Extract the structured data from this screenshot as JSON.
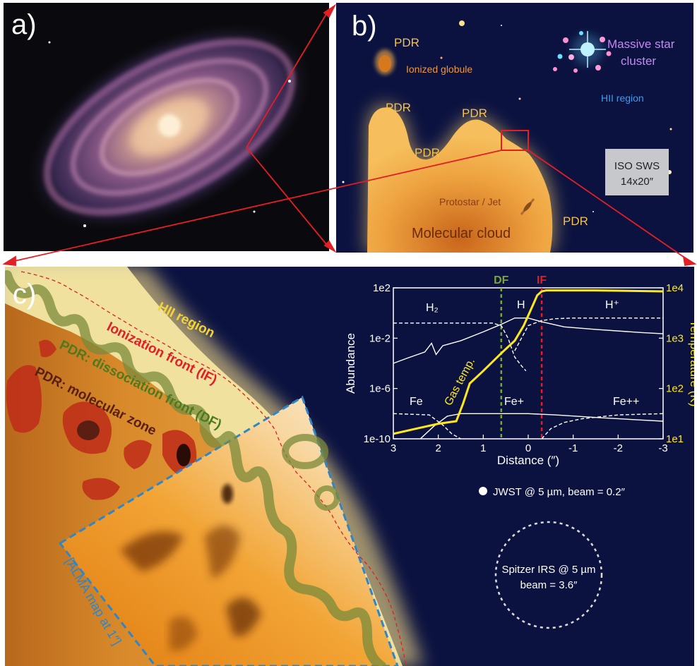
{
  "panel_a": {
    "label": "a)"
  },
  "panel_b": {
    "label": "b)",
    "pdr_labels": [
      "PDR",
      "PDR",
      "PDR",
      "PDR",
      "PDR"
    ],
    "ionized_globule": "Ionized globule",
    "massive_star_cluster_line1": "Massive star",
    "massive_star_cluster_line2": "cluster",
    "hii_region": "HII region",
    "iso_sws_line1": "ISO SWS",
    "iso_sws_line2": "14x20″",
    "protostar_jet": "Protostar / Jet",
    "molecular_cloud": "Molecular cloud"
  },
  "panel_c": {
    "label": "c)",
    "hii_region": "HII region",
    "ionization_front": "Ionization front (IF)",
    "dissociation_front": "PDR: dissociation front (DF)",
    "molecular_zone": "PDR: molecular zone",
    "alma_map": "[ALMA map at 1″]",
    "jwst_beam": "JWST @ 5 µm, beam = 0.2″",
    "spitzer_line1": "Spitzer IRS @ 5 µm",
    "spitzer_line2": "beam = 3.6″"
  },
  "colors": {
    "arrow_red": "#e31e24",
    "background_navy": "#0b1240",
    "pdr_orange": "#f5b041",
    "gas_temp_yellow": "#ffe81a",
    "df_green": "#7aa53a",
    "if_red": "#e31e24",
    "alma_blue": "#2e86c8"
  },
  "chart_data": {
    "type": "line",
    "xlabel": "Distance (″)",
    "ylabel": "Abundance",
    "y2label": "Temperature (K)",
    "xlim": [
      3,
      -3
    ],
    "ylim_log10": [
      -10,
      2
    ],
    "y2lim_log10": [
      1,
      4
    ],
    "x_ticks": [
      "3",
      "2",
      "1",
      "0",
      "-1",
      "-2",
      "-3"
    ],
    "y_ticks": [
      "1e-10",
      "1e-6",
      "1e-2",
      "1e2"
    ],
    "y2_ticks": [
      "1e1",
      "1e2",
      "1e3",
      "1e4"
    ],
    "markers": [
      {
        "label": "DF",
        "x": 0.6,
        "color": "#7aa53a"
      },
      {
        "label": "IF",
        "x": -0.3,
        "color": "#e31e24"
      }
    ],
    "series_labels": [
      "H₂",
      "H",
      "H⁺",
      "Fe",
      "Fe+",
      "Fe++",
      "Gas temp."
    ],
    "series": [
      {
        "name": "H2",
        "style": "dashed",
        "color": "#ffffff",
        "axis": "left",
        "x": [
          3,
          2.4,
          1.5,
          0.8,
          0.6,
          0.45,
          0.3,
          0.15,
          0.05
        ],
        "y_log10": [
          -0.8,
          -0.8,
          -0.8,
          -0.8,
          -1.0,
          -2.0,
          -3.5,
          -4.2,
          -4.6
        ]
      },
      {
        "name": "H",
        "style": "solid",
        "color": "#ffffff",
        "axis": "left",
        "x": [
          3,
          2.7,
          2.3,
          2.15,
          2.05,
          1.9,
          1.5,
          1.0,
          0.6,
          0.3,
          0.0,
          -0.3,
          -0.8,
          -1.5,
          -2.5,
          -3
        ],
        "y_log10": [
          -4.0,
          -3.6,
          -3.1,
          -2.4,
          -3.3,
          -2.6,
          -2.2,
          -1.5,
          -0.9,
          -0.4,
          -0.4,
          -0.7,
          -1.1,
          -1.3,
          -1.55,
          -1.65
        ]
      },
      {
        "name": "H+",
        "style": "dashed",
        "color": "#ffffff",
        "axis": "left",
        "x": [
          0.3,
          0.0,
          -0.3,
          -0.6,
          -1.0,
          -2.0,
          -3.0
        ],
        "y_log10": [
          -3.0,
          -1.0,
          -0.6,
          -0.45,
          -0.4,
          -0.4,
          -0.4
        ]
      },
      {
        "name": "Fe",
        "style": "dashed",
        "color": "#ffffff",
        "axis": "left",
        "x": [
          3,
          2.2,
          1.9,
          1.7,
          1.5
        ],
        "y_log10": [
          -8.0,
          -8.1,
          -8.9,
          -9.6,
          -10.0
        ]
      },
      {
        "name": "Fe+",
        "style": "solid",
        "color": "#ffffff",
        "axis": "left",
        "x": [
          2.4,
          2.1,
          1.8,
          1.5,
          1.0,
          0.0,
          -0.6,
          -1.5,
          -2.5,
          -3
        ],
        "y_log10": [
          -10.0,
          -9.0,
          -8.2,
          -8.0,
          -8.0,
          -8.0,
          -8.1,
          -8.3,
          -8.5,
          -8.6
        ]
      },
      {
        "name": "Fe++",
        "style": "dashed",
        "color": "#ffffff",
        "axis": "left",
        "x": [
          -0.3,
          -0.5,
          -0.8,
          -1.2,
          -2.0,
          -3.0
        ],
        "y_log10": [
          -10.0,
          -9.2,
          -8.7,
          -8.4,
          -8.1,
          -8.0
        ]
      },
      {
        "name": "Gas temp.",
        "style": "solid",
        "color": "#ffe81a",
        "axis": "right",
        "x": [
          3,
          2.5,
          2.0,
          1.6,
          1.45,
          1.3,
          1.0,
          0.6,
          0.3,
          0.1,
          -0.1,
          -0.2,
          -0.3,
          -0.4,
          -0.6,
          -1.5,
          -3
        ],
        "y_log10": [
          1.1,
          1.2,
          1.3,
          1.35,
          1.7,
          2.1,
          2.35,
          2.7,
          2.95,
          3.25,
          3.65,
          3.85,
          3.93,
          3.95,
          3.95,
          3.95,
          3.93
        ]
      }
    ]
  }
}
